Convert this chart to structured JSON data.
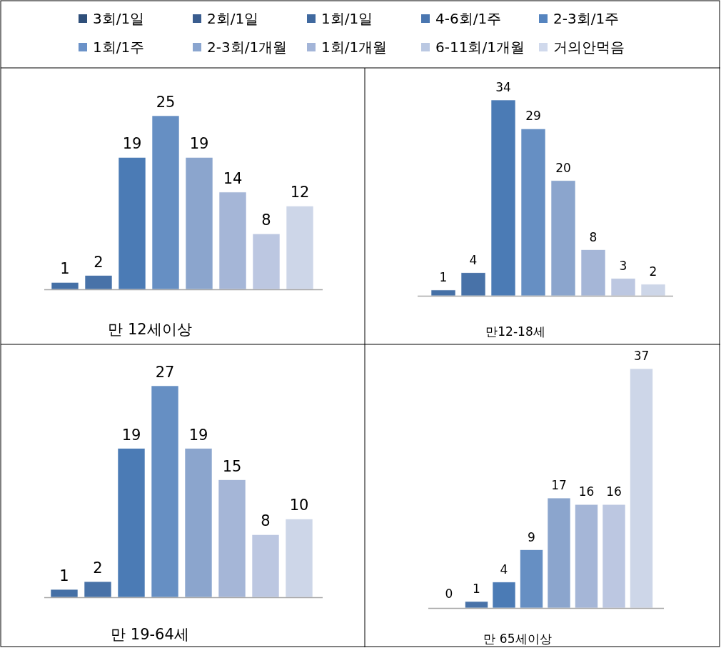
{
  "chart_data": [
    {
      "type": "other",
      "categories": [
        "3회/1일",
        "2회/1일",
        "1회/1일",
        "4-6회/1주",
        "2-3회/1주",
        "1회/1주",
        "2-3회/1개월",
        "1회/1개월",
        "6-11회/1개월",
        "거의안먹음"
      ],
      "colors": [
        "#2f4f7a",
        "#3a5d8f",
        "#40699f",
        "#4a76b0",
        "#5584bf",
        "#6b92c8",
        "#8aa5cf",
        "#a3b5d8",
        "#bac8e2",
        "#d0d9ec"
      ]
    },
    {
      "type": "bar",
      "categories": [
        null,
        null,
        null,
        null,
        null,
        null,
        null,
        null
      ],
      "values": [
        1,
        2,
        19,
        25,
        19,
        14,
        8,
        12
      ],
      "colors": [
        "#4570a6",
        "#4872a8",
        "#4b7bb5",
        "#668fc3",
        "#8ba5cd",
        "#a5b6d7",
        "#bcc7e1",
        "#cdd6e8"
      ],
      "data_labels": true,
      "xlabel": "만 12세이상"
    },
    {
      "type": "bar",
      "categories": [
        null,
        null,
        null,
        null,
        null,
        null,
        null,
        null
      ],
      "values": [
        1,
        4,
        34,
        29,
        20,
        8,
        3,
        2
      ],
      "colors": [
        "#4570a6",
        "#4872a8",
        "#4b7bb5",
        "#668fc3",
        "#8ba5cd",
        "#a5b6d7",
        "#bcc7e1",
        "#cdd6e8"
      ],
      "data_labels": true,
      "xlabel": "만12-18세"
    },
    {
      "type": "bar",
      "categories": [
        null,
        null,
        null,
        null,
        null,
        null,
        null,
        null
      ],
      "values": [
        1,
        2,
        19,
        27,
        19,
        15,
        8,
        10
      ],
      "colors": [
        "#4570a6",
        "#4872a8",
        "#4b7bb5",
        "#668fc3",
        "#8ba5cd",
        "#a5b6d7",
        "#bcc7e1",
        "#cdd6e8"
      ],
      "data_labels": true,
      "xlabel": "만 19-64세"
    },
    {
      "type": "bar",
      "categories": [
        null,
        null,
        null,
        null,
        null,
        null,
        null,
        null
      ],
      "values": [
        0,
        1,
        4,
        9,
        17,
        16,
        16,
        37
      ],
      "colors": [
        "#668fc3",
        "#4872a8",
        "#4b7bb5",
        "#668fc3",
        "#8ba5cd",
        "#a5b6d7",
        "#bcc7e1",
        "#cdd6e8"
      ],
      "data_labels": true,
      "xlabel": "만 65세이상"
    }
  ]
}
